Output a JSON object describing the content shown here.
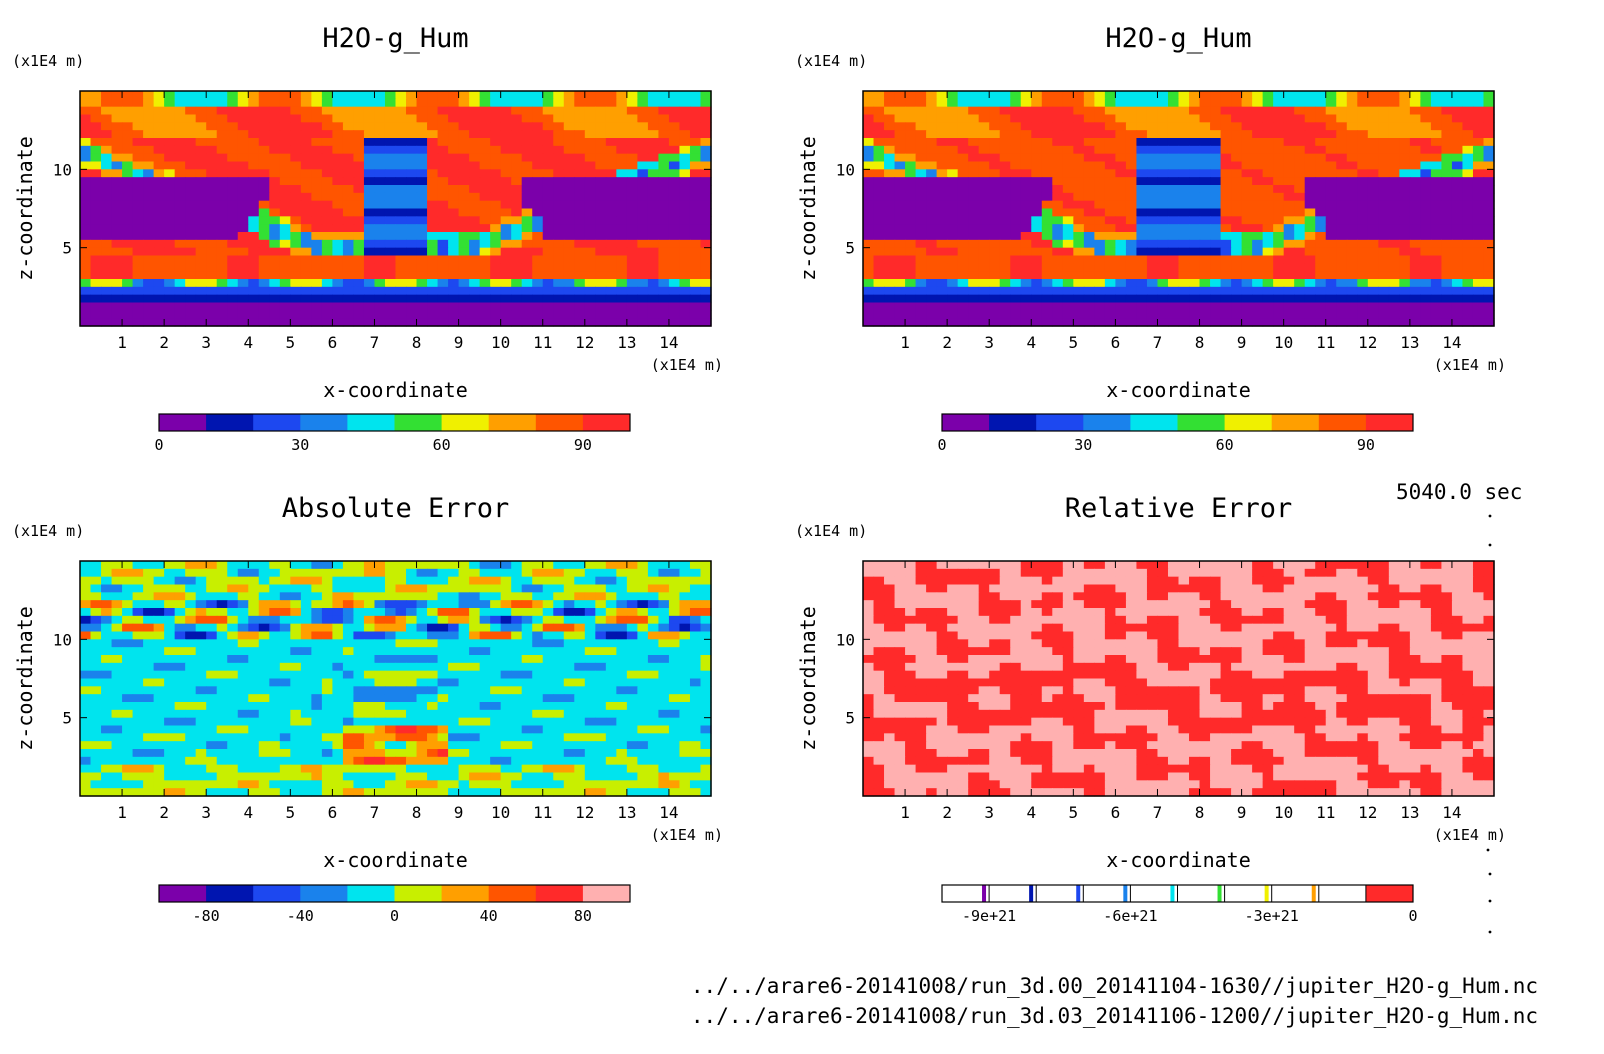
{
  "time_label": "5040.0 sec",
  "files": [
    "../../arare6-20141008/run_3d.00_20141104-1630//jupiter_H2O-g_Hum.nc",
    "../../arare6-20141008/run_3d.03_20141106-1200//jupiter_H2O-g_Hum.nc"
  ],
  "chart_data": [
    {
      "type": "heatmap",
      "title": "H2O-g_Hum",
      "xlabel": "x-coordinate",
      "ylabel": "z-coordinate",
      "x_unit": "(x1E4 m)",
      "y_unit": "(x1E4 m)",
      "xlim": [
        0,
        15
      ],
      "ylim": [
        0,
        15
      ],
      "x_ticks": [
        1,
        2,
        3,
        4,
        5,
        6,
        7,
        8,
        9,
        10,
        11,
        12,
        13,
        14
      ],
      "y_ticks": [
        5,
        10
      ],
      "colorbar": {
        "levels": [
          0,
          10,
          20,
          30,
          40,
          50,
          60,
          70,
          80,
          90,
          100
        ],
        "colors": [
          "#7b00aa",
          "#0015b0",
          "#1d48f0",
          "#1a82ec",
          "#00e4ee",
          "#33e033",
          "#f0f000",
          "#ff9f00",
          "#ff5500",
          "#ff2a2a"
        ],
        "tick_values": [
          0,
          30,
          60,
          90
        ],
        "tick_labels": [
          "0",
          "30",
          "60",
          "90"
        ]
      }
    },
    {
      "type": "heatmap",
      "title": "H2O-g_Hum",
      "xlabel": "x-coordinate",
      "ylabel": "z-coordinate",
      "x_unit": "(x1E4 m)",
      "y_unit": "(x1E4 m)",
      "xlim": [
        0,
        15
      ],
      "ylim": [
        0,
        15
      ],
      "x_ticks": [
        1,
        2,
        3,
        4,
        5,
        6,
        7,
        8,
        9,
        10,
        11,
        12,
        13,
        14
      ],
      "y_ticks": [
        5,
        10
      ],
      "colorbar": {
        "levels": [
          0,
          10,
          20,
          30,
          40,
          50,
          60,
          70,
          80,
          90,
          100
        ],
        "colors": [
          "#7b00aa",
          "#0015b0",
          "#1d48f0",
          "#1a82ec",
          "#00e4ee",
          "#33e033",
          "#f0f000",
          "#ff9f00",
          "#ff5500",
          "#ff2a2a"
        ],
        "tick_values": [
          0,
          30,
          60,
          90
        ],
        "tick_labels": [
          "0",
          "30",
          "60",
          "90"
        ]
      }
    },
    {
      "type": "heatmap",
      "title": "Absolute Error",
      "xlabel": "x-coordinate",
      "ylabel": "z-coordinate",
      "x_unit": "(x1E4 m)",
      "y_unit": "(x1E4 m)",
      "xlim": [
        0,
        15
      ],
      "ylim": [
        0,
        15
      ],
      "x_ticks": [
        1,
        2,
        3,
        4,
        5,
        6,
        7,
        8,
        9,
        10,
        11,
        12,
        13,
        14
      ],
      "y_ticks": [
        5,
        10
      ],
      "colorbar": {
        "levels": [
          -100,
          -80,
          -60,
          -40,
          -20,
          0,
          20,
          40,
          60,
          80,
          100
        ],
        "colors": [
          "#7b00aa",
          "#0015b0",
          "#1d48f0",
          "#1a82ec",
          "#00e4ee",
          "#c8ef00",
          "#ff9f00",
          "#ff5500",
          "#ff2a2a",
          "#ffb0b0"
        ],
        "tick_values": [
          -80,
          -40,
          0,
          40,
          80
        ],
        "tick_labels": [
          "-80",
          "-40",
          "0",
          "40",
          "80"
        ]
      }
    },
    {
      "type": "heatmap",
      "title": "Relative Error",
      "xlabel": "x-coordinate",
      "ylabel": "z-coordinate",
      "x_unit": "(x1E4 m)",
      "y_unit": "(x1E4 m)",
      "xlim": [
        0,
        15
      ],
      "ylim": [
        0,
        15
      ],
      "x_ticks": [
        1,
        2,
        3,
        4,
        5,
        6,
        7,
        8,
        9,
        10,
        11,
        12,
        13,
        14
      ],
      "y_ticks": [
        5,
        10
      ],
      "colorbar": {
        "levels": [
          -1e+22,
          -9e+21,
          -8e+21,
          -7e+21,
          -6e+21,
          -5e+21,
          -4e+21,
          -3e+21,
          -2e+21,
          -1e+21,
          0
        ],
        "colors": [
          "#ffffff",
          "#ffffff",
          "#ffffff",
          "#ffffff",
          "#ffffff",
          "#ffffff",
          "#ffffff",
          "#ffffff",
          "#ffffff",
          "#ff2a2a"
        ],
        "marker_colors": [
          "#7b00aa",
          "#0015b0",
          "#1d48f0",
          "#1a82ec",
          "#00e4ee",
          "#33e033",
          "#f0f000",
          "#ff9f00"
        ],
        "tick_values": [
          -9e+21,
          -6e+21,
          -3e+21,
          0
        ],
        "tick_labels": [
          "-9e+21",
          "-6e+21",
          "-3e+21",
          "0"
        ]
      }
    }
  ]
}
